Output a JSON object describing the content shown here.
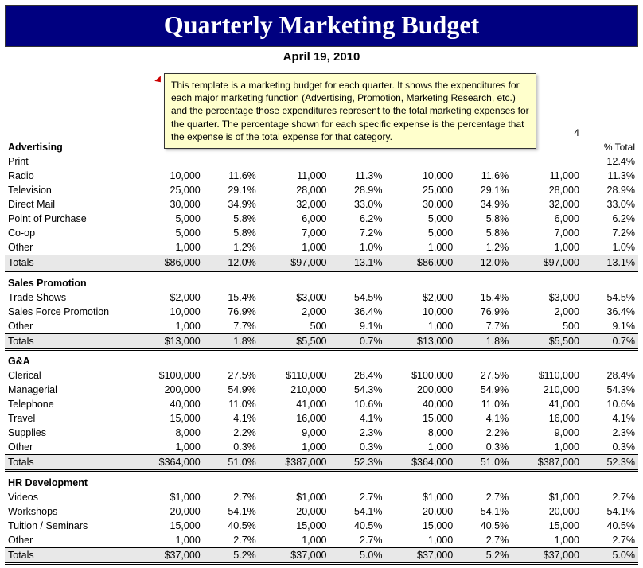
{
  "title": "Quarterly Marketing Budget",
  "date": "April 19, 2010",
  "tooltip": "This template is a marketing budget for each quarter. It shows the expenditures for each major marketing function (Advertising, Promotion, Marketing Research, etc.)  and the percentage those expenditures represent to the total marketing expenses for the quarter. The percentage shown for each specific expense is the percentage that the expense is of the total expense for that category.",
  "q4_header": "4",
  "pct_header": "% Total",
  "sections": [
    {
      "name": "Advertising",
      "rows": [
        {
          "label": "Print",
          "q1b": "",
          "q1p": "",
          "q2b": "",
          "q2p": "",
          "q3b": "",
          "q3p": "",
          "q4b": "",
          "q4p": "12.4%"
        },
        {
          "label": "Radio",
          "q1b": "10,000",
          "q1p": "11.6%",
          "q2b": "11,000",
          "q2p": "11.3%",
          "q3b": "10,000",
          "q3p": "11.6%",
          "q4b": "11,000",
          "q4p": "11.3%"
        },
        {
          "label": "Television",
          "q1b": "25,000",
          "q1p": "29.1%",
          "q2b": "28,000",
          "q2p": "28.9%",
          "q3b": "25,000",
          "q3p": "29.1%",
          "q4b": "28,000",
          "q4p": "28.9%"
        },
        {
          "label": "Direct Mail",
          "q1b": "30,000",
          "q1p": "34.9%",
          "q2b": "32,000",
          "q2p": "33.0%",
          "q3b": "30,000",
          "q3p": "34.9%",
          "q4b": "32,000",
          "q4p": "33.0%"
        },
        {
          "label": "Point of Purchase",
          "q1b": "5,000",
          "q1p": "5.8%",
          "q2b": "6,000",
          "q2p": "6.2%",
          "q3b": "5,000",
          "q3p": "5.8%",
          "q4b": "6,000",
          "q4p": "6.2%"
        },
        {
          "label": "Co-op",
          "q1b": "5,000",
          "q1p": "5.8%",
          "q2b": "7,000",
          "q2p": "7.2%",
          "q3b": "5,000",
          "q3p": "5.8%",
          "q4b": "7,000",
          "q4p": "7.2%"
        },
        {
          "label": "Other",
          "q1b": "1,000",
          "q1p": "1.2%",
          "q2b": "1,000",
          "q2p": "1.0%",
          "q3b": "1,000",
          "q3p": "1.2%",
          "q4b": "1,000",
          "q4p": "1.0%"
        }
      ],
      "totals": {
        "label": "Totals",
        "q1b": "$86,000",
        "q1p": "12.0%",
        "q2b": "$97,000",
        "q2p": "13.1%",
        "q3b": "$86,000",
        "q3p": "12.0%",
        "q4b": "$97,000",
        "q4p": "13.1%"
      }
    },
    {
      "name": "Sales Promotion",
      "rows": [
        {
          "label": "Trade Shows",
          "q1b": "$2,000",
          "q1p": "15.4%",
          "q2b": "$3,000",
          "q2p": "54.5%",
          "q3b": "$2,000",
          "q3p": "15.4%",
          "q4b": "$3,000",
          "q4p": "54.5%"
        },
        {
          "label": "Sales Force Promotion",
          "q1b": "10,000",
          "q1p": "76.9%",
          "q2b": "2,000",
          "q2p": "36.4%",
          "q3b": "10,000",
          "q3p": "76.9%",
          "q4b": "2,000",
          "q4p": "36.4%"
        },
        {
          "label": "Other",
          "q1b": "1,000",
          "q1p": "7.7%",
          "q2b": "500",
          "q2p": "9.1%",
          "q3b": "1,000",
          "q3p": "7.7%",
          "q4b": "500",
          "q4p": "9.1%"
        }
      ],
      "totals": {
        "label": "Totals",
        "q1b": "$13,000",
        "q1p": "1.8%",
        "q2b": "$5,500",
        "q2p": "0.7%",
        "q3b": "$13,000",
        "q3p": "1.8%",
        "q4b": "$5,500",
        "q4p": "0.7%"
      }
    },
    {
      "name": "G&A",
      "rows": [
        {
          "label": "Clerical",
          "q1b": "$100,000",
          "q1p": "27.5%",
          "q2b": "$110,000",
          "q2p": "28.4%",
          "q3b": "$100,000",
          "q3p": "27.5%",
          "q4b": "$110,000",
          "q4p": "28.4%"
        },
        {
          "label": "Managerial",
          "q1b": "200,000",
          "q1p": "54.9%",
          "q2b": "210,000",
          "q2p": "54.3%",
          "q3b": "200,000",
          "q3p": "54.9%",
          "q4b": "210,000",
          "q4p": "54.3%"
        },
        {
          "label": "Telephone",
          "q1b": "40,000",
          "q1p": "11.0%",
          "q2b": "41,000",
          "q2p": "10.6%",
          "q3b": "40,000",
          "q3p": "11.0%",
          "q4b": "41,000",
          "q4p": "10.6%"
        },
        {
          "label": "Travel",
          "q1b": "15,000",
          "q1p": "4.1%",
          "q2b": "16,000",
          "q2p": "4.1%",
          "q3b": "15,000",
          "q3p": "4.1%",
          "q4b": "16,000",
          "q4p": "4.1%"
        },
        {
          "label": "Supplies",
          "q1b": "8,000",
          "q1p": "2.2%",
          "q2b": "9,000",
          "q2p": "2.3%",
          "q3b": "8,000",
          "q3p": "2.2%",
          "q4b": "9,000",
          "q4p": "2.3%"
        },
        {
          "label": "Other",
          "q1b": "1,000",
          "q1p": "0.3%",
          "q2b": "1,000",
          "q2p": "0.3%",
          "q3b": "1,000",
          "q3p": "0.3%",
          "q4b": "1,000",
          "q4p": "0.3%"
        }
      ],
      "totals": {
        "label": "Totals",
        "q1b": "$364,000",
        "q1p": "51.0%",
        "q2b": "$387,000",
        "q2p": "52.3%",
        "q3b": "$364,000",
        "q3p": "51.0%",
        "q4b": "$387,000",
        "q4p": "52.3%"
      }
    },
    {
      "name": "HR Development",
      "rows": [
        {
          "label": "Videos",
          "q1b": "$1,000",
          "q1p": "2.7%",
          "q2b": "$1,000",
          "q2p": "2.7%",
          "q3b": "$1,000",
          "q3p": "2.7%",
          "q4b": "$1,000",
          "q4p": "2.7%"
        },
        {
          "label": "Workshops",
          "q1b": "20,000",
          "q1p": "54.1%",
          "q2b": "20,000",
          "q2p": "54.1%",
          "q3b": "20,000",
          "q3p": "54.1%",
          "q4b": "20,000",
          "q4p": "54.1%"
        },
        {
          "label": "Tuition / Seminars",
          "q1b": "15,000",
          "q1p": "40.5%",
          "q2b": "15,000",
          "q2p": "40.5%",
          "q3b": "15,000",
          "q3p": "40.5%",
          "q4b": "15,000",
          "q4p": "40.5%"
        },
        {
          "label": "Other",
          "q1b": "1,000",
          "q1p": "2.7%",
          "q2b": "1,000",
          "q2p": "2.7%",
          "q3b": "1,000",
          "q3p": "2.7%",
          "q4b": "1,000",
          "q4p": "2.7%"
        }
      ],
      "totals": {
        "label": "Totals",
        "q1b": "$37,000",
        "q1p": "5.2%",
        "q2b": "$37,000",
        "q2p": "5.0%",
        "q3b": "$37,000",
        "q3p": "5.2%",
        "q4b": "$37,000",
        "q4p": "5.0%"
      }
    }
  ]
}
